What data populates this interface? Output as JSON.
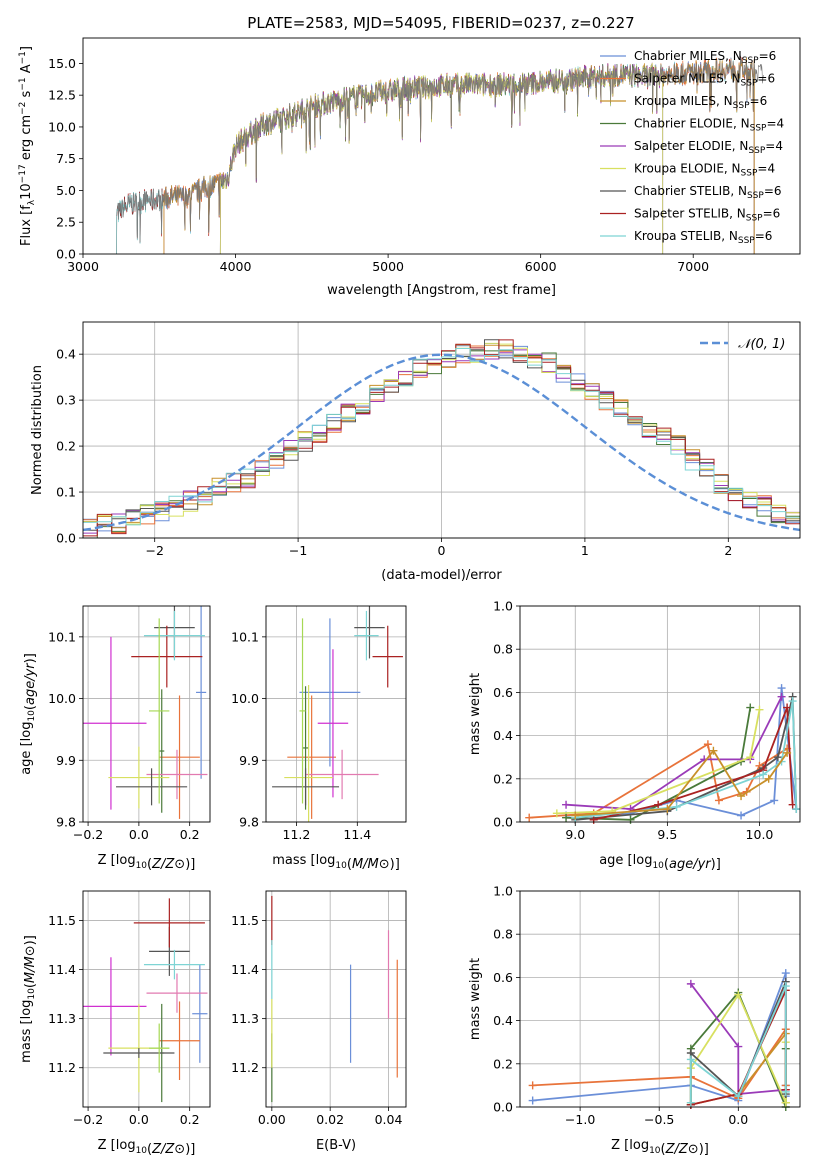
{
  "figure_title": "PLATE=2583, MJD=54095, FIBERID=0237, z=0.227",
  "colors": {
    "Chabrier MILES": "#6b8fd8",
    "Salpeter MILES": "#e8733a",
    "Kroupa MILES": "#c8902a",
    "Chabrier ELODIE": "#4a7a3a",
    "Salpeter ELODIE": "#9a3ab8",
    "Kroupa ELODIE": "#d8e060",
    "Chabrier STELIB": "#555555",
    "Salpeter STELIB": "#aa2222",
    "Kroupa STELIB": "#7ed4d4",
    "magenta": "#d030d0",
    "pink": "#e27ab0",
    "lime": "#a6d854",
    "normal": "#5b8fd6"
  },
  "chart_data": [
    {
      "id": "spectrum",
      "type": "line",
      "title": "PLATE=2583, MJD=54095, FIBERID=0237, z=0.227",
      "xlabel": "wavelength [Angstrom, rest frame]",
      "ylabel_parts": [
        "Flux [f",
        "λ",
        "10",
        "−17",
        " erg cm",
        "−2",
        " s",
        "−1",
        " A",
        "−1",
        "]"
      ],
      "xlim": [
        3000,
        7700
      ],
      "ylim": [
        0,
        17
      ],
      "xticks": [
        3000,
        4000,
        5000,
        6000,
        7000
      ],
      "yticks": [
        0.0,
        2.5,
        5.0,
        7.5,
        10.0,
        12.5,
        15.0
      ],
      "ytick_labels": [
        "0.0",
        "2.5",
        "5.0",
        "7.5",
        "10.0",
        "12.5",
        "15.0"
      ],
      "grid": false,
      "legend_position": "top-right",
      "series": [
        {
          "name": "Chabrier MILES, N",
          "suffix": "=6",
          "start": 3530,
          "end": 7400
        },
        {
          "name": "Salpeter MILES, N",
          "suffix": "=6",
          "start": 3530,
          "end": 7400
        },
        {
          "name": "Kroupa MILES, N",
          "suffix": "=6",
          "start": 3530,
          "end": 7400
        },
        {
          "name": "Chabrier ELODIE, N",
          "suffix": "=4",
          "start": 3900,
          "end": 6800
        },
        {
          "name": "Salpeter ELODIE, N",
          "suffix": "=4",
          "start": 3900,
          "end": 6800
        },
        {
          "name": "Kroupa ELODIE, N",
          "suffix": "=4",
          "start": 3900,
          "end": 6800
        },
        {
          "name": "Chabrier STELIB, N",
          "suffix": "=6",
          "start": 3220,
          "end": 7400
        },
        {
          "name": "Salpeter STELIB, N",
          "suffix": "=6",
          "start": 3220,
          "end": 7400
        },
        {
          "name": "Kroupa STELIB, N",
          "suffix": "=6",
          "start": 3220,
          "end": 7400
        }
      ],
      "legend_subscript": "SSP",
      "continuum_x": [
        3220,
        3300,
        3400,
        3500,
        3600,
        3700,
        3800,
        3900,
        3950,
        4000,
        4100,
        4200,
        4300,
        4400,
        4500,
        4700,
        4900,
        5100,
        5300,
        5500,
        5700,
        5900,
        6100,
        6300,
        6500,
        6700,
        6900,
        7100,
        7300,
        7450
      ],
      "continuum_y": [
        3.2,
        3.9,
        4.2,
        4.3,
        4.5,
        4.6,
        5.2,
        5.6,
        6.0,
        8.5,
        9.5,
        10.3,
        10.6,
        11.1,
        11.6,
        12.2,
        12.6,
        13.0,
        13.2,
        13.3,
        13.3,
        13.4,
        13.6,
        13.9,
        14.1,
        14.0,
        14.2,
        14.4,
        14.6,
        14.2
      ]
    },
    {
      "id": "residuals",
      "type": "histogram",
      "xlabel": "(data-model)/error",
      "ylabel": "Normed distribution",
      "xlim": [
        -2.5,
        2.5
      ],
      "ylim": [
        0,
        0.47
      ],
      "xticks": [
        -2,
        -1,
        0,
        1,
        2
      ],
      "xtick_labels": [
        "−2",
        "−1",
        "0",
        "1",
        "2"
      ],
      "yticks": [
        0.0,
        0.1,
        0.2,
        0.3,
        0.4
      ],
      "ytick_labels": [
        "0.0",
        "0.1",
        "0.2",
        "0.3",
        "0.4"
      ],
      "grid": true,
      "legend_position": "top-right",
      "legend_label": "𝒩(0, 1)",
      "bin_width": 0.1,
      "bin_start": -2.5,
      "base_values": [
        0.02,
        0.03,
        0.03,
        0.04,
        0.05,
        0.06,
        0.07,
        0.08,
        0.09,
        0.11,
        0.12,
        0.13,
        0.15,
        0.17,
        0.19,
        0.21,
        0.23,
        0.25,
        0.27,
        0.29,
        0.31,
        0.33,
        0.35,
        0.37,
        0.38,
        0.39,
        0.4,
        0.4,
        0.41,
        0.41,
        0.4,
        0.39,
        0.38,
        0.36,
        0.34,
        0.32,
        0.3,
        0.28,
        0.26,
        0.24,
        0.22,
        0.2,
        0.17,
        0.15,
        0.12,
        0.1,
        0.08,
        0.07,
        0.05,
        0.04
      ]
    },
    {
      "id": "age-Z",
      "type": "scatter",
      "xlabel": "Z [log10(Z/Z⊙)]",
      "ylabel": "age  [log10(age/yr)]",
      "xlim": [
        -0.22,
        0.28
      ],
      "ylim": [
        9.8,
        10.15
      ],
      "xticks": [
        -0.2,
        0.0,
        0.2
      ],
      "xtick_labels": [
        "−0.2",
        "0.0",
        "0.2"
      ],
      "yticks": [
        9.8,
        9.9,
        10.0,
        10.1
      ],
      "ytick_labels": [
        "9.8",
        "9.9",
        "10.0",
        "10.1"
      ],
      "grid": true,
      "points": [
        {
          "c": "Chabrier MILES",
          "x": 0.245,
          "xe": 0.02,
          "y": 10.01,
          "ye": 0.14
        },
        {
          "c": "Salpeter MILES",
          "x": 0.16,
          "xe": 0.08,
          "y": 9.905,
          "ye": 0.1
        },
        {
          "c": "Chabrier ELODIE",
          "x": 0.09,
          "xe": 0.01,
          "y": 9.915,
          "ye": 0.1
        },
        {
          "c": "magenta",
          "x": -0.11,
          "xe": 0.14,
          "y": 9.96,
          "ye": 0.14
        },
        {
          "c": "pink",
          "x": 0.15,
          "xe": 0.12,
          "y": 9.877,
          "ye": 0.04
        },
        {
          "c": "Kroupa ELODIE",
          "x": 0.0,
          "xe": 0.12,
          "y": 9.872,
          "ye": 0.05
        },
        {
          "c": "Chabrier STELIB",
          "x": 0.05,
          "xe": 0.14,
          "y": 9.857,
          "ye": 0.03
        },
        {
          "c": "Chabrier STELIB",
          "x": 0.14,
          "xe": 0.08,
          "y": 10.115,
          "ye": 0.05
        },
        {
          "c": "Salpeter STELIB",
          "x": 0.11,
          "xe": 0.14,
          "y": 10.068,
          "ye": 0.05
        },
        {
          "c": "Kroupa STELIB",
          "x": 0.14,
          "xe": 0.12,
          "y": 10.102,
          "ye": 0.04
        },
        {
          "c": "lime",
          "x": 0.08,
          "xe": 0.04,
          "y": 9.98,
          "ye": 0.15
        }
      ]
    },
    {
      "id": "age-mass",
      "type": "scatter",
      "xlabel": "mass [log10(M/M⊙)]",
      "ylabel": "",
      "xlim": [
        11.1,
        11.56
      ],
      "ylim": [
        9.8,
        10.15
      ],
      "xticks": [
        11.2,
        11.4
      ],
      "xtick_labels": [
        "11.2",
        "11.4"
      ],
      "yticks": [
        9.8,
        9.9,
        10.0,
        10.1
      ],
      "ytick_labels": [
        "9.8",
        "9.9",
        "10.0",
        "10.1"
      ],
      "grid": true,
      "points": [
        {
          "c": "Chabrier MILES",
          "x": 11.31,
          "xe": 0.1,
          "y": 10.01,
          "ye": 0.12
        },
        {
          "c": "Salpeter MILES",
          "x": 11.25,
          "xe": 0.08,
          "y": 9.905,
          "ye": 0.1
        },
        {
          "c": "Chabrier ELODIE",
          "x": 11.23,
          "xe": 0.01,
          "y": 9.92,
          "ye": 0.1
        },
        {
          "c": "magenta",
          "x": 11.32,
          "xe": 0.05,
          "y": 9.96,
          "ye": 0.12
        },
        {
          "c": "pink",
          "x": 11.35,
          "xe": 0.12,
          "y": 9.877,
          "ye": 0.04
        },
        {
          "c": "Kroupa ELODIE",
          "x": 11.24,
          "xe": 0.08,
          "y": 9.872,
          "ye": 0.15
        },
        {
          "c": "Chabrier STELIB",
          "x": 11.23,
          "xe": 0.11,
          "y": 9.857,
          "ye": 0.03
        },
        {
          "c": "Chabrier STELIB",
          "x": 11.44,
          "xe": 0.05,
          "y": 10.115,
          "ye": 0.05
        },
        {
          "c": "Salpeter STELIB",
          "x": 11.5,
          "xe": 0.05,
          "y": 10.068,
          "ye": 0.05
        },
        {
          "c": "Kroupa STELIB",
          "x": 11.43,
          "xe": 0.04,
          "y": 10.102,
          "ye": 0.04
        },
        {
          "c": "lime",
          "x": 11.22,
          "xe": 0.01,
          "y": 9.98,
          "ye": 0.15
        }
      ]
    },
    {
      "id": "weight-age",
      "type": "line",
      "xlabel": "age  [log10(age/yr)]",
      "ylabel": "mass weight",
      "xlim": [
        8.7,
        10.22
      ],
      "ylim": [
        0,
        1
      ],
      "xticks": [
        9.0,
        9.5,
        10.0
      ],
      "xtick_labels": [
        "9.0",
        "9.5",
        "10.0"
      ],
      "yticks": [
        0.0,
        0.2,
        0.4,
        0.6,
        0.8,
        1.0
      ],
      "ytick_labels": [
        "0.0",
        "0.2",
        "0.4",
        "0.6",
        "0.8",
        "1.0"
      ],
      "grid": true,
      "series": [
        {
          "c": "Chabrier MILES",
          "x": [
            8.95,
            9.3,
            9.55,
            9.9,
            10.08,
            10.12,
            10.2
          ],
          "y": [
            0.03,
            0.04,
            0.1,
            0.03,
            0.1,
            0.62,
            0.06
          ]
        },
        {
          "c": "Salpeter MILES",
          "x": [
            8.75,
            9.1,
            9.72,
            9.78,
            9.93,
            10.0,
            10.15
          ],
          "y": [
            0.02,
            0.04,
            0.36,
            0.1,
            0.14,
            0.26,
            0.34
          ]
        },
        {
          "c": "Chabrier ELODIE",
          "x": [
            8.95,
            9.3,
            9.9,
            9.95
          ],
          "y": [
            0.02,
            0.01,
            0.28,
            0.53
          ]
        },
        {
          "c": "Salpeter ELODIE",
          "x": [
            8.95,
            9.3,
            9.7,
            9.95,
            10.12
          ],
          "y": [
            0.08,
            0.06,
            0.29,
            0.29,
            0.58
          ]
        },
        {
          "c": "Kroupa ELODIE",
          "x": [
            8.9,
            9.2,
            9.95,
            10.0
          ],
          "y": [
            0.04,
            0.05,
            0.3,
            0.52
          ]
        },
        {
          "c": "Chabrier STELIB",
          "x": [
            9.0,
            9.5,
            10.02,
            10.1,
            10.18,
            10.2
          ],
          "y": [
            0.01,
            0.05,
            0.25,
            0.3,
            0.58,
            0.06
          ]
        },
        {
          "c": "Salpeter STELIB",
          "x": [
            9.1,
            9.45,
            10.02,
            10.15,
            10.18
          ],
          "y": [
            0.01,
            0.08,
            0.24,
            0.53,
            0.08
          ]
        },
        {
          "c": "Kroupa STELIB",
          "x": [
            9.0,
            9.55,
            10.02,
            10.12,
            10.18,
            10.2
          ],
          "y": [
            0.02,
            0.07,
            0.22,
            0.28,
            0.56,
            0.06
          ]
        },
        {
          "c": "Kroupa MILES",
          "x": [
            9.0,
            9.5,
            9.75,
            9.9,
            10.05,
            10.15
          ],
          "y": [
            0.03,
            0.06,
            0.33,
            0.12,
            0.2,
            0.32
          ]
        }
      ]
    },
    {
      "id": "mass-Z",
      "type": "scatter",
      "xlabel": "Z [log10(Z/Z⊙)]",
      "ylabel": "mass [log10(M/M⊙)]",
      "xlim": [
        -0.22,
        0.28
      ],
      "ylim": [
        11.12,
        11.56
      ],
      "xticks": [
        -0.2,
        0.0,
        0.2
      ],
      "xtick_labels": [
        "−0.2",
        "0.0",
        "0.2"
      ],
      "yticks": [
        11.2,
        11.3,
        11.4,
        11.5
      ],
      "ytick_labels": [
        "11.2",
        "11.3",
        "11.4",
        "11.5"
      ],
      "grid": true,
      "points": [
        {
          "c": "Chabrier MILES",
          "x": 0.24,
          "xe": 0.03,
          "y": 11.31,
          "ye": 0.1
        },
        {
          "c": "Salpeter MILES",
          "x": 0.16,
          "xe": 0.08,
          "y": 11.255,
          "ye": 0.08
        },
        {
          "c": "Chabrier ELODIE",
          "x": 0.09,
          "xe": 0.01,
          "y": 11.23,
          "ye": 0.1
        },
        {
          "c": "magenta",
          "x": -0.11,
          "xe": 0.14,
          "y": 11.325,
          "ye": 0.1
        },
        {
          "c": "pink",
          "x": 0.15,
          "xe": 0.12,
          "y": 11.352,
          "ye": 0.04
        },
        {
          "c": "Kroupa ELODIE",
          "x": 0.0,
          "xe": 0.12,
          "y": 11.24,
          "ye": 0.09
        },
        {
          "c": "Chabrier STELIB",
          "x": 0.0,
          "xe": 0.14,
          "y": 11.23,
          "ye": 0.01
        },
        {
          "c": "Chabrier STELIB",
          "x": 0.12,
          "xe": 0.08,
          "y": 11.437,
          "ye": 0.05
        },
        {
          "c": "Salpeter STELIB",
          "x": 0.12,
          "xe": 0.14,
          "y": 11.495,
          "ye": 0.05
        },
        {
          "c": "Kroupa STELIB",
          "x": 0.14,
          "xe": 0.12,
          "y": 11.41,
          "ye": 0.03
        },
        {
          "c": "lime",
          "x": 0.08,
          "xe": 0.04,
          "y": 11.24,
          "ye": 0.05
        }
      ]
    },
    {
      "id": "mass-ebv",
      "type": "scatter",
      "xlabel": "E(B-V)",
      "ylabel": "",
      "xlim": [
        -0.002,
        0.046
      ],
      "ylim": [
        11.12,
        11.56
      ],
      "xticks": [
        0.0,
        0.02,
        0.04
      ],
      "xtick_labels": [
        "0.00",
        "0.02",
        "0.04"
      ],
      "yticks": [
        11.2,
        11.3,
        11.4,
        11.5
      ],
      "ytick_labels": [
        "11.2",
        "11.3",
        "11.4",
        "11.5"
      ],
      "grid": true,
      "points": [
        {
          "c": "Chabrier MILES",
          "x": 0.027,
          "xe": 0,
          "y": 11.31,
          "ye": 0.1
        },
        {
          "c": "Salpeter MILES",
          "x": 0.043,
          "xe": 0,
          "y": 11.3,
          "ye": 0.12
        },
        {
          "c": "pink",
          "x": 0.04,
          "xe": 0,
          "y": 11.39,
          "ye": 0.09
        },
        {
          "c": "Chabrier ELODIE",
          "x": 0.0,
          "xe": 0,
          "y": 11.2,
          "ye": 0.07
        },
        {
          "c": "Salpeter STELIB",
          "x": 0.0,
          "xe": 0,
          "y": 11.5,
          "ye": 0.05
        },
        {
          "c": "Kroupa STELIB",
          "x": 0.0,
          "xe": 0,
          "y": 11.4,
          "ye": 0.06
        },
        {
          "c": "Kroupa ELODIE",
          "x": 0.0,
          "xe": 0,
          "y": 11.27,
          "ye": 0.07
        }
      ]
    },
    {
      "id": "weight-Z",
      "type": "line",
      "xlabel": "Z [log10(Z/Z⊙)]",
      "ylabel": "mass weight",
      "xlim": [
        -1.38,
        0.39
      ],
      "ylim": [
        0,
        1
      ],
      "xticks": [
        -1.0,
        -0.5,
        0.0
      ],
      "xtick_labels": [
        "−1.0",
        "−0.5",
        "0.0"
      ],
      "yticks": [
        0.0,
        0.2,
        0.4,
        0.6,
        0.8,
        1.0
      ],
      "ytick_labels": [
        "0.0",
        "0.2",
        "0.4",
        "0.6",
        "0.8",
        "1.0"
      ],
      "grid": true,
      "series": [
        {
          "c": "Chabrier MILES",
          "x": [
            -1.3,
            -0.3,
            0.0,
            0.3,
            0.3,
            0.3
          ],
          "y": [
            0.03,
            0.1,
            0.03,
            0.62,
            0.1,
            0.05
          ]
        },
        {
          "c": "Salpeter MILES",
          "x": [
            -1.3,
            -0.3,
            0.0,
            0.3,
            0.3
          ],
          "y": [
            0.1,
            0.14,
            0.04,
            0.36,
            0.1
          ]
        },
        {
          "c": "Kroupa MILES",
          "x": [
            -0.3,
            0.0,
            0.3,
            0.3
          ],
          "y": [
            0.01,
            0.06,
            0.34,
            0.02
          ]
        },
        {
          "c": "Chabrier ELODIE",
          "x": [
            -0.3,
            -0.3,
            0.0,
            0.3,
            0.3
          ],
          "y": [
            0.01,
            0.27,
            0.53,
            0.0,
            0.27
          ]
        },
        {
          "c": "Salpeter ELODIE",
          "x": [
            -0.3,
            0.0,
            0.0,
            0.3
          ],
          "y": [
            0.57,
            0.28,
            0.06,
            0.08
          ]
        },
        {
          "c": "Kroupa ELODIE",
          "x": [
            -0.3,
            -0.3,
            0.0,
            0.3,
            0.3
          ],
          "y": [
            0.02,
            0.18,
            0.52,
            0.02,
            0.3
          ]
        },
        {
          "c": "Chabrier STELIB",
          "x": [
            -0.3,
            -0.3,
            0.0,
            0.3,
            0.3
          ],
          "y": [
            0.01,
            0.25,
            0.05,
            0.58,
            0.06
          ]
        },
        {
          "c": "Salpeter STELIB",
          "x": [
            -0.3,
            0.0,
            0.3,
            0.3
          ],
          "y": [
            0.01,
            0.06,
            0.54,
            0.08
          ]
        },
        {
          "c": "Kroupa STELIB",
          "x": [
            -0.3,
            -0.3,
            0.0,
            0.3,
            0.3
          ],
          "y": [
            0.02,
            0.22,
            0.05,
            0.56,
            0.07
          ]
        }
      ]
    }
  ]
}
